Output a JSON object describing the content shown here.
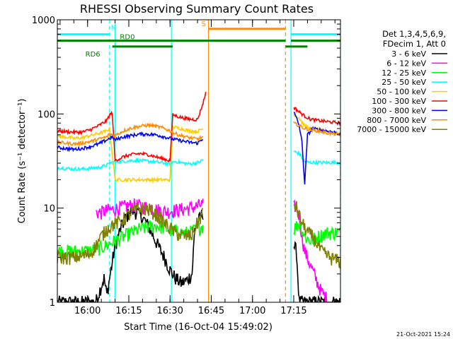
{
  "chart_data": {
    "type": "line",
    "title": "RHESSI Observing Summary Count Rates",
    "xlabel": "Start Time (16-Oct-04 15:49:02)",
    "ylabel": "Count Rate (s⁻¹ detector⁻¹)",
    "yscale": "log",
    "ylim": [
      1,
      1000
    ],
    "xlim_minutes_after_15_49": [
      0,
      103
    ],
    "x_ticks": [
      {
        "label": "16:00",
        "minutes": 11
      },
      {
        "label": "16:15",
        "minutes": 26
      },
      {
        "label": "16:30",
        "minutes": 41
      },
      {
        "label": "16:45",
        "minutes": 56
      },
      {
        "label": "17:00",
        "minutes": 71
      },
      {
        "label": "17:15",
        "minutes": 86
      }
    ],
    "y_ticks": [
      {
        "label": "1",
        "value": 1
      },
      {
        "label": "10",
        "value": 10
      },
      {
        "label": "100",
        "value": 100
      },
      {
        "label": "1000",
        "value": 1000
      }
    ],
    "legend": {
      "placement": "right",
      "header": [
        "Det 1,3,4,5,6,9,",
        "FDecim 1, Att 0"
      ]
    },
    "timestamp": "21-Oct-2021 15:24",
    "status_bars": [
      {
        "label": "N",
        "color": "#00ffff",
        "value": 700,
        "segments": [
          [
            0,
            19
          ],
          [
            85,
            103
          ]
        ]
      },
      {
        "label": "S",
        "color": "#ff8c00",
        "value": 800,
        "segments": [
          [
            55,
            83
          ]
        ]
      },
      {
        "label": "RD0",
        "color": "#008000",
        "value": 600,
        "segments": [
          [
            0,
            83
          ],
          [
            85,
            103
          ]
        ]
      },
      {
        "label": "RD6",
        "color": "#008000",
        "value": 520,
        "segments": [
          [
            20,
            42
          ],
          [
            83,
            91
          ]
        ]
      }
    ],
    "vertical_lines": [
      {
        "minutes": 0,
        "color": "#00ffff",
        "style": "solid"
      },
      {
        "minutes": 19,
        "color": "#00ffff",
        "style": "dashed"
      },
      {
        "minutes": 21,
        "color": "#00ffff",
        "style": "solid"
      },
      {
        "minutes": 41.5,
        "color": "#00ffff",
        "style": "solid"
      },
      {
        "minutes": 55,
        "color": "#ff8c00",
        "style": "solid"
      },
      {
        "minutes": 83,
        "color": "#ff8c00",
        "style": "dashed"
      },
      {
        "minutes": 85,
        "color": "#00ffff",
        "style": "solid"
      },
      {
        "minutes": 103,
        "color": "#00ffff",
        "style": "dashed"
      }
    ],
    "series": [
      {
        "name": "3 - 6 keV",
        "color": "#000000",
        "points": [
          [
            0,
            1
          ],
          [
            14,
            1
          ],
          [
            16,
            1.5
          ],
          [
            17,
            1.8
          ],
          [
            18,
            1.2
          ],
          [
            21,
            4
          ],
          [
            23,
            6
          ],
          [
            25,
            8
          ],
          [
            27,
            9.5
          ],
          [
            29,
            9
          ],
          [
            31,
            8
          ],
          [
            33,
            6.5
          ],
          [
            35,
            5
          ],
          [
            37,
            3.8
          ],
          [
            39,
            3
          ],
          [
            41,
            2.2
          ],
          [
            43,
            1.8
          ],
          [
            45,
            1.6
          ],
          [
            47,
            1.7
          ],
          [
            49,
            2
          ],
          [
            50,
            6
          ],
          [
            52,
            8
          ],
          [
            53,
            9
          ]
        ],
        "after": [
          [
            86,
            4
          ],
          [
            87,
            3.5
          ],
          [
            88,
            1
          ],
          [
            103,
            1
          ]
        ]
      },
      {
        "name": "6 - 12 keV",
        "color": "#ff00ff",
        "points": [
          [
            14,
            9
          ],
          [
            16,
            9
          ],
          [
            18,
            9.5
          ],
          [
            20,
            9.6
          ],
          [
            22,
            10
          ],
          [
            24,
            10.3
          ],
          [
            26,
            10.6
          ],
          [
            28,
            10.8
          ],
          [
            30,
            10.6
          ],
          [
            32,
            10.3
          ],
          [
            34,
            10
          ],
          [
            36,
            9.7
          ],
          [
            38,
            9.4
          ],
          [
            40,
            9.2
          ],
          [
            42,
            9.4
          ],
          [
            44,
            9.6
          ],
          [
            46,
            9.8
          ],
          [
            48,
            10
          ],
          [
            50,
            10.3
          ],
          [
            52,
            10.8
          ],
          [
            53,
            11
          ]
        ],
        "after": [
          [
            86,
            10
          ],
          [
            87,
            11
          ],
          [
            88,
            8
          ],
          [
            89,
            5
          ],
          [
            90,
            3.5
          ],
          [
            92,
            2.5
          ],
          [
            94,
            1.8
          ],
          [
            96,
            1.3
          ],
          [
            98,
            1.1
          ],
          [
            99,
            1
          ]
        ]
      },
      {
        "name": "12 - 25 keV",
        "color": "#00ff00",
        "points": [
          [
            0,
            3.5
          ],
          [
            5,
            3.5
          ],
          [
            10,
            3.5
          ],
          [
            13,
            3.6
          ],
          [
            16,
            3.8
          ],
          [
            19,
            4.2
          ],
          [
            21,
            4.5
          ],
          [
            24,
            5
          ],
          [
            27,
            5.5
          ],
          [
            30,
            6
          ],
          [
            33,
            6.3
          ],
          [
            36,
            6.5
          ],
          [
            39,
            6.2
          ],
          [
            42,
            5.7
          ],
          [
            45,
            5.5
          ],
          [
            48,
            5.5
          ],
          [
            51,
            6
          ],
          [
            53,
            6.5
          ]
        ],
        "after": [
          [
            86,
            6
          ],
          [
            88,
            7
          ],
          [
            90,
            5
          ],
          [
            92,
            4.5
          ],
          [
            95,
            5
          ],
          [
            98,
            5.5
          ],
          [
            103,
            5.5
          ]
        ]
      },
      {
        "name": "25 - 50 keV",
        "color": "#00ffff",
        "points": [
          [
            0,
            27
          ],
          [
            3,
            26.5
          ],
          [
            6,
            26
          ],
          [
            9,
            26
          ],
          [
            12,
            26.5
          ],
          [
            15,
            27
          ],
          [
            18,
            28.5
          ],
          [
            19,
            30
          ],
          [
            21,
            31
          ],
          [
            24,
            31.5
          ],
          [
            27,
            32
          ],
          [
            30,
            32
          ],
          [
            33,
            31.5
          ],
          [
            36,
            31
          ],
          [
            39,
            30
          ],
          [
            41,
            29.5
          ],
          [
            42,
            31
          ],
          [
            44,
            31
          ],
          [
            46,
            30
          ],
          [
            48,
            29.5
          ],
          [
            50,
            30
          ],
          [
            52,
            31
          ],
          [
            53,
            33
          ]
        ],
        "after": [
          [
            86,
            40
          ],
          [
            88,
            38
          ],
          [
            90,
            31
          ],
          [
            92,
            30.5
          ],
          [
            95,
            30.5
          ],
          [
            98,
            30.5
          ],
          [
            103,
            30.5
          ]
        ]
      },
      {
        "name": "50 - 100 keV",
        "color": "#ffcc00",
        "points": [
          [
            0,
            58
          ],
          [
            3,
            57
          ],
          [
            6,
            55
          ],
          [
            9,
            56
          ],
          [
            12,
            59
          ],
          [
            15,
            62
          ],
          [
            18,
            66
          ],
          [
            19,
            70
          ],
          [
            21,
            20
          ],
          [
            25,
            20
          ],
          [
            30,
            20
          ],
          [
            35,
            20
          ],
          [
            40,
            20
          ],
          [
            41,
            20
          ],
          [
            42,
            73
          ],
          [
            45,
            70
          ],
          [
            48,
            66
          ],
          [
            51,
            65
          ],
          [
            53,
            70
          ]
        ],
        "after": [
          [
            86,
            100
          ],
          [
            88,
            90
          ],
          [
            90,
            75
          ],
          [
            92,
            70
          ],
          [
            95,
            68
          ],
          [
            98,
            66
          ],
          [
            103,
            62
          ]
        ]
      },
      {
        "name": "100 - 300 keV",
        "color": "#ff0000",
        "points": [
          [
            0,
            66
          ],
          [
            3,
            65
          ],
          [
            6,
            64
          ],
          [
            9,
            64
          ],
          [
            12,
            68
          ],
          [
            15,
            75
          ],
          [
            18,
            85
          ],
          [
            19,
            98
          ],
          [
            20,
            102
          ],
          [
            21,
            32
          ],
          [
            24,
            35
          ],
          [
            27,
            37
          ],
          [
            30,
            38
          ],
          [
            33,
            37
          ],
          [
            36,
            35
          ],
          [
            39,
            33
          ],
          [
            41,
            32
          ],
          [
            42,
            98
          ],
          [
            45,
            92
          ],
          [
            48,
            88
          ],
          [
            51,
            87
          ],
          [
            53,
            130
          ],
          [
            54,
            168
          ]
        ],
        "after": [
          [
            86,
            118
          ],
          [
            88,
            105
          ],
          [
            90,
            95
          ],
          [
            92,
            88
          ],
          [
            95,
            85
          ],
          [
            98,
            83
          ],
          [
            103,
            80
          ]
        ]
      },
      {
        "name": "300 - 800 keV",
        "color": "#0000ff",
        "points": [
          [
            0,
            44
          ],
          [
            3,
            43
          ],
          [
            6,
            42
          ],
          [
            9,
            43
          ],
          [
            12,
            45
          ],
          [
            15,
            48
          ],
          [
            18,
            53
          ],
          [
            20,
            57
          ],
          [
            21,
            53
          ],
          [
            24,
            57
          ],
          [
            27,
            59
          ],
          [
            30,
            61
          ],
          [
            33,
            61
          ],
          [
            36,
            60
          ],
          [
            39,
            57
          ],
          [
            41,
            55
          ],
          [
            42,
            54
          ],
          [
            45,
            52
          ],
          [
            48,
            50
          ],
          [
            51,
            49
          ],
          [
            53,
            55
          ]
        ],
        "after": [
          [
            86,
            105
          ],
          [
            87,
            90
          ],
          [
            88,
            75
          ],
          [
            89,
            50
          ],
          [
            90,
            18
          ],
          [
            91,
            60
          ],
          [
            93,
            70
          ],
          [
            95,
            68
          ],
          [
            98,
            66
          ],
          [
            103,
            62
          ]
        ]
      },
      {
        "name": "800 - 7000 keV",
        "color": "#ff8c00",
        "points": [
          [
            0,
            50
          ],
          [
            3,
            49
          ],
          [
            6,
            48
          ],
          [
            9,
            49
          ],
          [
            12,
            51
          ],
          [
            15,
            54
          ],
          [
            18,
            57
          ],
          [
            19,
            61
          ],
          [
            21,
            59
          ],
          [
            24,
            66
          ],
          [
            27,
            71
          ],
          [
            30,
            74
          ],
          [
            33,
            76
          ],
          [
            36,
            74
          ],
          [
            39,
            70
          ],
          [
            41,
            66
          ],
          [
            42,
            63
          ],
          [
            45,
            59
          ],
          [
            48,
            56
          ],
          [
            51,
            54
          ],
          [
            53,
            57
          ]
        ],
        "after": [
          [
            86,
            80
          ],
          [
            88,
            75
          ],
          [
            90,
            70
          ],
          [
            92,
            68
          ],
          [
            95,
            66
          ],
          [
            98,
            63
          ],
          [
            103,
            60
          ]
        ]
      },
      {
        "name": "7000 - 15000 keV",
        "color": "#808000",
        "points": [
          [
            0,
            3
          ],
          [
            3,
            3
          ],
          [
            6,
            3
          ],
          [
            9,
            3.1
          ],
          [
            12,
            3.3
          ],
          [
            14,
            4
          ],
          [
            16,
            5
          ],
          [
            18,
            6
          ],
          [
            20,
            6.7
          ],
          [
            22,
            7
          ],
          [
            25,
            8
          ],
          [
            28,
            9.5
          ],
          [
            31,
            10
          ],
          [
            34,
            9.5
          ],
          [
            37,
            8
          ],
          [
            40,
            6.5
          ],
          [
            43,
            5.5
          ],
          [
            46,
            5
          ],
          [
            49,
            5.2
          ],
          [
            51,
            7
          ],
          [
            53,
            9
          ]
        ],
        "after": [
          [
            86,
            11
          ],
          [
            87,
            10
          ],
          [
            89,
            7
          ],
          [
            91,
            5.5
          ],
          [
            93,
            5
          ],
          [
            96,
            3.5
          ],
          [
            99,
            3
          ],
          [
            103,
            2.7
          ]
        ]
      }
    ]
  }
}
